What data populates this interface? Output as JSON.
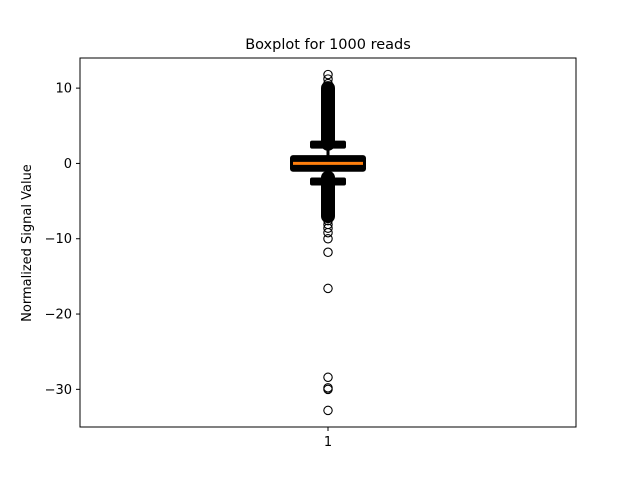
{
  "chart_data": {
    "type": "boxplot",
    "title": "Boxplot for 1000 reads",
    "xlabel": "",
    "ylabel": "Normalized Signal Value",
    "categories": [
      "1"
    ],
    "ylim": [
      -35,
      14
    ],
    "yticks": [
      10,
      0,
      -10,
      -20,
      -30
    ],
    "ytick_labels": [
      "10",
      "0",
      "−10",
      "−20",
      "−30"
    ],
    "grid": false,
    "boxes": [
      {
        "category": "1",
        "median": 0.0,
        "q1": -0.7,
        "q3": 0.7,
        "whisker_low": -2.4,
        "whisker_high": 2.5,
        "dense_outliers_high": [
          2.6,
          10.0
        ],
        "dense_outliers_low": [
          -7.0,
          -1.9
        ],
        "outliers": [
          11.8,
          11.2,
          10.6,
          -7.6,
          -8.1,
          -8.6,
          -9.2,
          -10.0,
          -11.8,
          -16.6,
          -28.4,
          -29.8,
          -30.0,
          -32.8
        ]
      }
    ],
    "colors": {
      "median": "#ff7f0e",
      "box": "#000000",
      "flier": "#000000"
    }
  }
}
